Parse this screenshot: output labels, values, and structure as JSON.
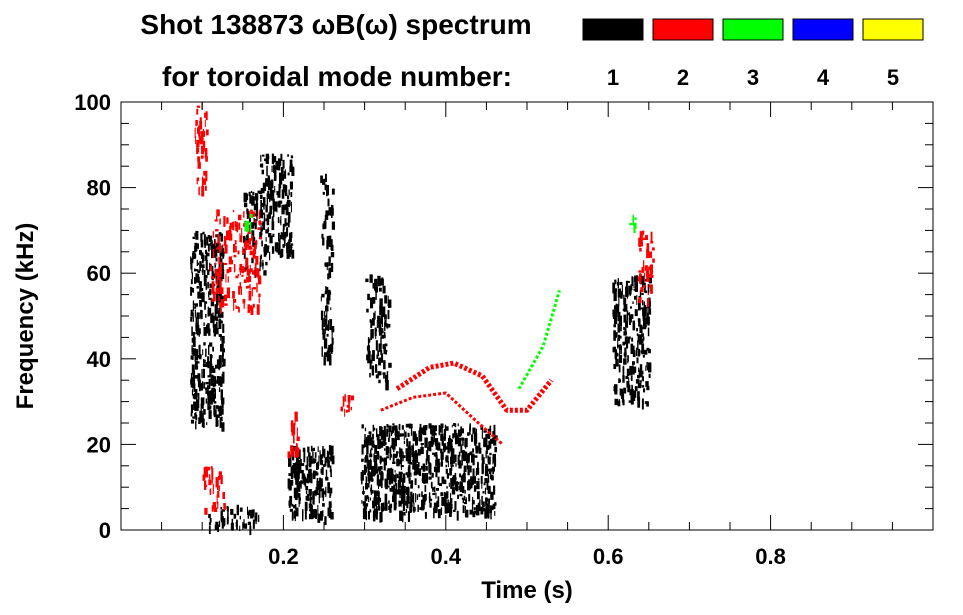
{
  "chart_data": {
    "type": "heatmap",
    "title_line1": "Shot 138873 ωB(ω) spectrum",
    "title_line2": "for toroidal mode number:",
    "xlabel": "Time (s)",
    "ylabel": "Frequency (kHz)",
    "xlim": [
      0.0,
      1.0
    ],
    "ylim": [
      0,
      100
    ],
    "x_ticks": [
      {
        "value": 0.2,
        "label": "0.2"
      },
      {
        "value": 0.4,
        "label": "0.4"
      },
      {
        "value": 0.6,
        "label": "0.6"
      },
      {
        "value": 0.8,
        "label": "0.8"
      }
    ],
    "y_ticks": [
      {
        "value": 0,
        "label": "0"
      },
      {
        "value": 20,
        "label": "20"
      },
      {
        "value": 40,
        "label": "40"
      },
      {
        "value": 60,
        "label": "60"
      },
      {
        "value": 80,
        "label": "80"
      },
      {
        "value": 100,
        "label": "100"
      }
    ],
    "legend": [
      {
        "mode": "1",
        "color": "#000000"
      },
      {
        "mode": "2",
        "color": "#ff0000"
      },
      {
        "mode": "3",
        "color": "#00ff00"
      },
      {
        "mode": "4",
        "color": "#0000ff"
      },
      {
        "mode": "5",
        "color": "#ffff00"
      }
    ],
    "regions": [
      {
        "mode": "1",
        "t": [
          0.085,
          0.125
        ],
        "f": [
          25,
          70
        ],
        "density": 0.8
      },
      {
        "mode": "1",
        "t": [
          0.105,
          0.17
        ],
        "f": [
          1,
          6
        ],
        "density": 0.6
      },
      {
        "mode": "1",
        "t": [
          0.15,
          0.18
        ],
        "f": [
          60,
          80
        ],
        "density": 0.5
      },
      {
        "mode": "1",
        "t": [
          0.17,
          0.21
        ],
        "f": [
          65,
          88
        ],
        "density": 0.7
      },
      {
        "mode": "1",
        "t": [
          0.205,
          0.26
        ],
        "f": [
          3,
          20
        ],
        "density": 0.9
      },
      {
        "mode": "1",
        "t": [
          0.245,
          0.26
        ],
        "f": [
          40,
          85
        ],
        "density": 0.5
      },
      {
        "mode": "1",
        "t": [
          0.295,
          0.46
        ],
        "f": [
          4,
          25
        ],
        "density": 0.85
      },
      {
        "mode": "1",
        "t": [
          0.3,
          0.33
        ],
        "f": [
          35,
          60
        ],
        "density": 0.5
      },
      {
        "mode": "1",
        "t": [
          0.605,
          0.65
        ],
        "f": [
          30,
          60
        ],
        "density": 0.7
      },
      {
        "mode": "2",
        "t": [
          0.09,
          0.105
        ],
        "f": [
          80,
          100
        ],
        "density": 0.6
      },
      {
        "mode": "2",
        "t": [
          0.11,
          0.17
        ],
        "f": [
          52,
          75
        ],
        "density": 0.45
      },
      {
        "mode": "2",
        "t": [
          0.1,
          0.13
        ],
        "f": [
          5,
          15
        ],
        "density": 0.4
      },
      {
        "mode": "2",
        "t": [
          0.205,
          0.22
        ],
        "f": [
          18,
          28
        ],
        "density": 0.5
      },
      {
        "mode": "2",
        "t": [
          0.27,
          0.285
        ],
        "f": [
          28,
          32
        ],
        "density": 0.7
      },
      {
        "mode": "2",
        "t": [
          0.635,
          0.655
        ],
        "f": [
          53,
          70
        ],
        "density": 0.5
      },
      {
        "mode": "3",
        "t": [
          0.15,
          0.16
        ],
        "f": [
          70,
          75
        ],
        "density": 0.4
      },
      {
        "mode": "3",
        "t": [
          0.625,
          0.635
        ],
        "f": [
          68,
          75
        ],
        "density": 0.3
      }
    ],
    "lines": [
      {
        "mode": "2",
        "points": [
          [
            0.34,
            33
          ],
          [
            0.38,
            38
          ],
          [
            0.41,
            39
          ],
          [
            0.445,
            36
          ],
          [
            0.475,
            28
          ],
          [
            0.5,
            28
          ],
          [
            0.53,
            35
          ]
        ],
        "width": 2.5
      },
      {
        "mode": "2",
        "points": [
          [
            0.32,
            28
          ],
          [
            0.36,
            31
          ],
          [
            0.4,
            32
          ],
          [
            0.44,
            25
          ],
          [
            0.47,
            20
          ]
        ],
        "width": 1.5
      },
      {
        "mode": "3",
        "points": [
          [
            0.49,
            33
          ],
          [
            0.505,
            38
          ],
          [
            0.52,
            43
          ],
          [
            0.54,
            56
          ]
        ],
        "width": 1.5
      }
    ]
  }
}
